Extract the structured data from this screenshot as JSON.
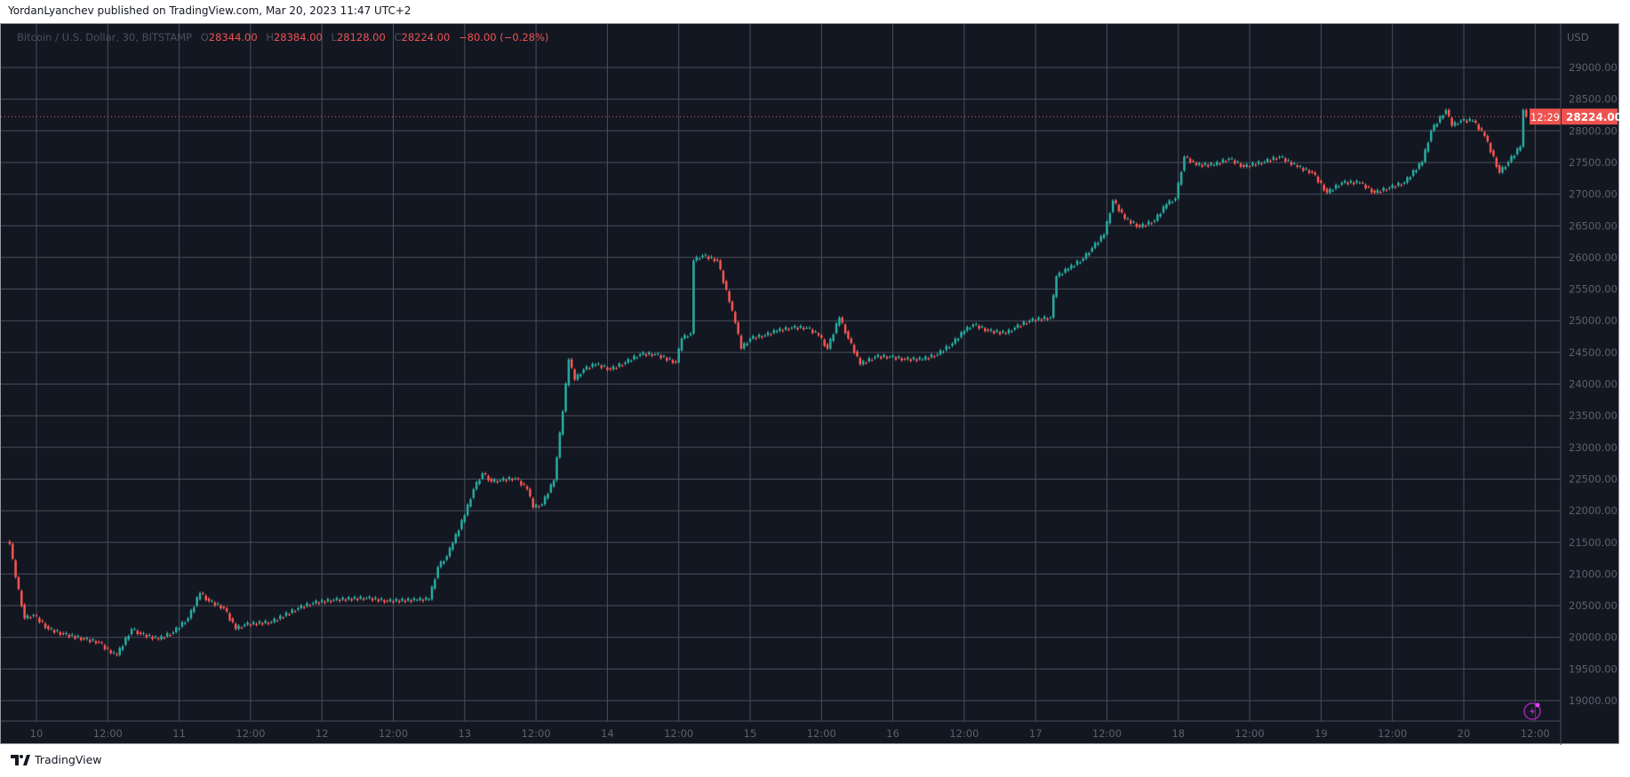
{
  "header": {
    "published": "YordanLyanchev published on TradingView.com, Mar 20, 2023 11:47 UTC+2"
  },
  "legend": {
    "symbol": "Bitcoin / U.S. Dollar, 30, BITSTAMP",
    "open_key": "O",
    "open": "28344.00",
    "high_key": "H",
    "high": "28384.00",
    "low_key": "L",
    "low": "28128.00",
    "close_key": "C",
    "close": "28224.00",
    "change": "−80.00 (−0.28%)"
  },
  "price_axis": {
    "currency": "USD",
    "last_price": "28224.00",
    "countdown": "12:29"
  },
  "footer": {
    "brand": "TradingView",
    "logo_icon": "tradingview-logo-icon"
  },
  "colors": {
    "background": "#131722",
    "up": "#26a69a",
    "down": "#ef5350",
    "grid": "#4a4e5a"
  },
  "chart_data": {
    "type": "candlestick",
    "interval": "30",
    "grid": true,
    "ylim": [
      18750,
      29300
    ],
    "y_ticks": [
      "19000.00",
      "19500.00",
      "20000.00",
      "20500.00",
      "21000.00",
      "21500.00",
      "22000.00",
      "22500.00",
      "23000.00",
      "23500.00",
      "24000.00",
      "24500.00",
      "25000.00",
      "25500.00",
      "26000.00",
      "26500.00",
      "27000.00",
      "27500.00",
      "28000.00",
      "28500.00",
      "29000.00"
    ],
    "x_ticks": [
      "10",
      "12:00",
      "11",
      "12:00",
      "12",
      "12:00",
      "13",
      "12:00",
      "14",
      "12:00",
      "15",
      "12:00",
      "16",
      "12:00",
      "17",
      "12:00",
      "18",
      "12:00",
      "19",
      "12:00",
      "20",
      "12:00"
    ],
    "t": [
      "2023-03-09 19:30",
      "2023-03-09 20:30",
      "2023-03-09 22:00",
      "2023-03-09 23:30",
      "2023-03-10 02:00",
      "2023-03-10 04:30",
      "2023-03-10 08:00",
      "2023-03-10 10:30",
      "2023-03-10 12:30",
      "2023-03-10 13:30",
      "2023-03-10 16:00",
      "2023-03-10 17:30",
      "2023-03-10 20:30",
      "2023-03-10 23:00",
      "2023-03-11 01:30",
      "2023-03-11 03:30",
      "2023-03-11 05:00",
      "2023-03-11 07:30",
      "2023-03-11 09:30",
      "2023-03-11 11:00",
      "2023-03-11 15:30",
      "2023-03-11 20:00",
      "2023-03-11 22:30",
      "2023-03-12 02:00",
      "2023-03-12 07:30",
      "2023-03-12 11:00",
      "2023-03-12 16:00",
      "2023-03-12 18:00",
      "2023-03-12 19:30",
      "2023-03-12 21:00",
      "2023-03-12 22:00",
      "2023-03-13 00:00",
      "2023-03-13 01:30",
      "2023-03-13 03:00",
      "2023-03-13 04:30",
      "2023-03-13 06:00",
      "2023-03-13 08:30",
      "2023-03-13 10:30",
      "2023-03-13 11:30",
      "2023-03-13 13:00",
      "2023-03-13 15:00",
      "2023-03-13 15:30",
      "2023-03-13 16:30",
      "2023-03-13 17:30",
      "2023-03-13 18:30",
      "2023-03-13 20:00",
      "2023-03-13 22:00",
      "2023-03-14 00:30",
      "2023-03-14 03:00",
      "2023-03-14 05:30",
      "2023-03-14 08:00",
      "2023-03-14 11:30",
      "2023-03-14 12:30",
      "2023-03-14 14:00",
      "2023-03-14 14:30",
      "2023-03-14 16:00",
      "2023-03-14 18:30",
      "2023-03-14 20:30",
      "2023-03-14 21:30",
      "2023-03-14 22:30",
      "2023-03-15 00:00",
      "2023-03-15 02:30",
      "2023-03-15 04:30",
      "2023-03-15 07:00",
      "2023-03-15 09:30",
      "2023-03-15 11:30",
      "2023-03-15 13:00",
      "2023-03-15 15:00",
      "2023-03-15 16:30",
      "2023-03-15 18:30",
      "2023-03-15 21:00",
      "2023-03-15 23:30",
      "2023-03-16 02:00",
      "2023-03-16 05:00",
      "2023-03-16 07:30",
      "2023-03-16 10:00",
      "2023-03-16 12:00",
      "2023-03-16 13:30",
      "2023-03-16 16:00",
      "2023-03-16 19:00",
      "2023-03-16 20:30",
      "2023-03-16 23:00",
      "2023-03-17 02:30",
      "2023-03-17 03:30",
      "2023-03-17 05:30",
      "2023-03-17 08:00",
      "2023-03-17 09:30",
      "2023-03-17 11:30",
      "2023-03-17 13:00",
      "2023-03-17 15:00",
      "2023-03-17 17:30",
      "2023-03-17 20:00",
      "2023-03-17 22:00",
      "2023-03-17 23:30",
      "2023-03-18 01:00",
      "2023-03-18 03:00",
      "2023-03-18 06:00",
      "2023-03-18 08:30",
      "2023-03-18 11:00",
      "2023-03-18 14:30",
      "2023-03-18 17:00",
      "2023-03-18 20:00",
      "2023-03-18 22:30",
      "2023-03-19 01:00",
      "2023-03-19 03:30",
      "2023-03-19 06:30",
      "2023-03-19 09:00",
      "2023-03-19 11:30",
      "2023-03-19 14:00",
      "2023-03-19 17:00",
      "2023-03-19 18:30",
      "2023-03-19 21:00",
      "2023-03-19 22:00",
      "2023-03-19 23:30",
      "2023-03-20 01:30",
      "2023-03-20 03:30",
      "2023-03-20 06:00",
      "2023-03-20 07:30",
      "2023-03-20 09:30",
      "2023-03-20 10:00",
      "2023-03-20 10:30"
    ],
    "close": [
      21475,
      20950,
      20300,
      20350,
      20130,
      20050,
      19970,
      19920,
      19750,
      19720,
      20130,
      20050,
      19970,
      20080,
      20300,
      20700,
      20570,
      20460,
      20130,
      20200,
      20240,
      20460,
      20540,
      20590,
      20620,
      20570,
      20590,
      20600,
      21110,
      21280,
      21490,
      21930,
      22340,
      22590,
      22460,
      22480,
      22510,
      22340,
      22050,
      22100,
      22480,
      22840,
      23570,
      24390,
      24070,
      24230,
      24310,
      24230,
      24340,
      24470,
      24470,
      24340,
      24720,
      24800,
      25950,
      26030,
      25950,
      25300,
      24970,
      24560,
      24720,
      24770,
      24840,
      24890,
      24890,
      24770,
      24560,
      25050,
      24720,
      24310,
      24430,
      24430,
      24390,
      24390,
      24470,
      24640,
      24840,
      24940,
      24840,
      24800,
      24890,
      25000,
      25050,
      25700,
      25820,
      25980,
      26150,
      26360,
      26900,
      26610,
      26480,
      26580,
      26840,
      26930,
      27590,
      27460,
      27460,
      27560,
      27430,
      27510,
      27590,
      27430,
      27340,
      27020,
      27180,
      27180,
      27020,
      27100,
      27180,
      27510,
      28000,
      28330,
      28080,
      28160,
      28160,
      27920,
      27340,
      27510,
      27750,
      28330,
      28224
    ]
  }
}
